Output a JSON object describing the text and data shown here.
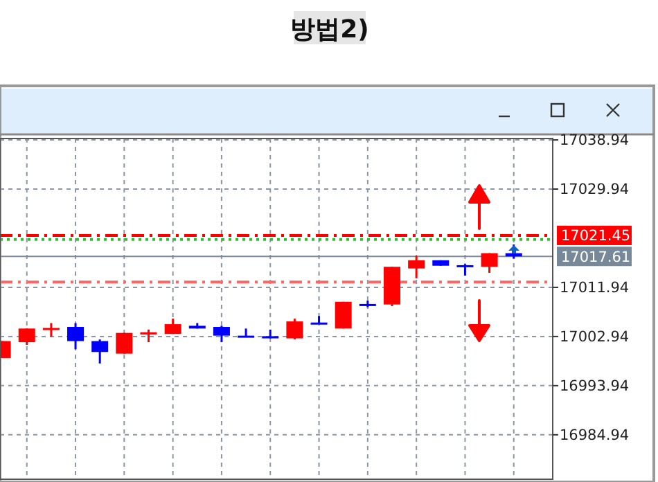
{
  "chart_data": {
    "type": "candlestick",
    "title": "방법2)",
    "categories": [
      null,
      null,
      null,
      null,
      null,
      null,
      null,
      null,
      null,
      null,
      null,
      null,
      null,
      null,
      null,
      null,
      null,
      null,
      null,
      null,
      null,
      null
    ],
    "ohlc": [
      [
        16999.0,
        17002.1,
        16999.0,
        17002.1
      ],
      [
        17001.9,
        17004.4,
        17001.4,
        17004.4
      ],
      [
        17004.4,
        17005.4,
        17002.9,
        17004.5
      ],
      [
        17004.7,
        17005.4,
        17000.6,
        17002.1
      ],
      [
        17002.1,
        17002.4,
        16998.0,
        17000.1
      ],
      [
        16999.8,
        17003.6,
        16999.8,
        17003.6
      ],
      [
        17003.6,
        17004.2,
        17001.9,
        17003.7
      ],
      [
        17003.4,
        17006.2,
        17003.4,
        17005.2
      ],
      [
        17004.9,
        17005.4,
        17004.4,
        17004.4
      ],
      [
        17004.7,
        17004.9,
        17001.9,
        17003.1
      ],
      [
        17003.1,
        17004.4,
        17002.9,
        17002.9
      ],
      [
        17003.0,
        17004.2,
        17002.6,
        17002.6
      ],
      [
        17002.6,
        17006.2,
        17002.4,
        17005.7
      ],
      [
        17005.5,
        17006.7,
        17005.2,
        17005.4
      ],
      [
        17004.4,
        17009.3,
        17004.4,
        17009.3
      ],
      [
        17008.9,
        17009.5,
        17008.3,
        17008.8
      ],
      [
        17008.8,
        17015.7,
        17008.5,
        17015.7
      ],
      [
        17015.4,
        17017.7,
        17013.6,
        17016.9
      ],
      [
        17016.9,
        17016.9,
        17015.9,
        17015.9
      ],
      [
        17016.0,
        17016.2,
        17014.1,
        17015.9
      ],
      [
        17015.7,
        17018.2,
        17014.6,
        17018.2
      ],
      [
        17018.2,
        17019.8,
        17017.2,
        17017.61
      ]
    ],
    "colors": [
      "#ff0000",
      "#ff0000",
      "#ff0000",
      "#0000ff",
      "#0000ff",
      "#ff0000",
      "#ff0000",
      "#ff0000",
      "#0000ff",
      "#0000ff",
      "#0000ff",
      "#0000ff",
      "#ff0000",
      "#0000ff",
      "#ff0000",
      "#0000ff",
      "#ff0000",
      "#ff0000",
      "#0000ff",
      "#0000ff",
      "#ff0000",
      "#0000ff"
    ],
    "ylim": [
      16976.8,
      17039.2
    ],
    "yticks": [
      17038.94,
      17029.94,
      17011.94,
      17002.94,
      16993.94,
      16984.94
    ],
    "grid": true,
    "ref_lines": [
      {
        "axis": "y",
        "value": 17021.45,
        "label": "17021.45",
        "color": "#ff0000",
        "line_style": "dashed"
      },
      {
        "axis": "y",
        "value": 17020.7,
        "color": "#33bb33",
        "line_style": "dotted"
      },
      {
        "axis": "y",
        "value": 17017.61,
        "label": "17017.61",
        "color": "#778899",
        "line_style": "solid"
      },
      {
        "axis": "y",
        "value": 17012.9,
        "color": "#ff6666",
        "line_style": "dashed"
      }
    ]
  }
}
